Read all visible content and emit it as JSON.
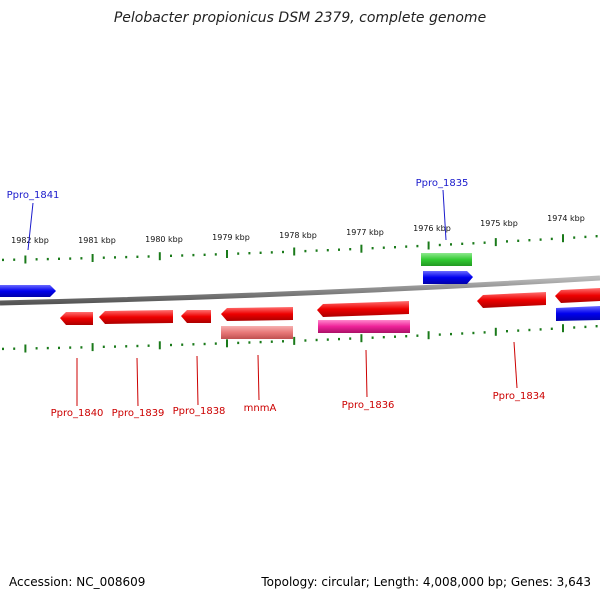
{
  "title": "Pelobacter propionicus DSM 2379, complete genome",
  "accession": "Accession: NC_008609",
  "summary": "Topology: circular; Length: 4,008,000 bp; Genes: 3,643",
  "scale_labels": [
    "1982 kbp",
    "1981 kbp",
    "1980 kbp",
    "1979 kbp",
    "1978 kbp",
    "1977 kbp",
    "1976 kbp",
    "1975 kbp",
    "1974 kbp"
  ],
  "gene_labels": [
    {
      "text": "Ppro_1841",
      "color": "#1a1acc"
    },
    {
      "text": "Ppro_1835",
      "color": "#1a1acc"
    },
    {
      "text": "Ppro_1840",
      "color": "#cc0000"
    },
    {
      "text": "Ppro_1839",
      "color": "#cc0000"
    },
    {
      "text": "Ppro_1838",
      "color": "#cc0000"
    },
    {
      "text": "mnmA",
      "color": "#cc0000"
    },
    {
      "text": "Ppro_1836",
      "color": "#cc0000"
    },
    {
      "text": "Ppro_1834",
      "color": "#cc0000"
    }
  ],
  "colors": {
    "forward_cds": "#0000ee",
    "reverse_cds": "#ee0000",
    "rna": "#33cc33",
    "pink_feature": "#ee2299",
    "pale_feature": "#e87878",
    "backbone": "#888888",
    "ticks": "#1a7a1a"
  }
}
